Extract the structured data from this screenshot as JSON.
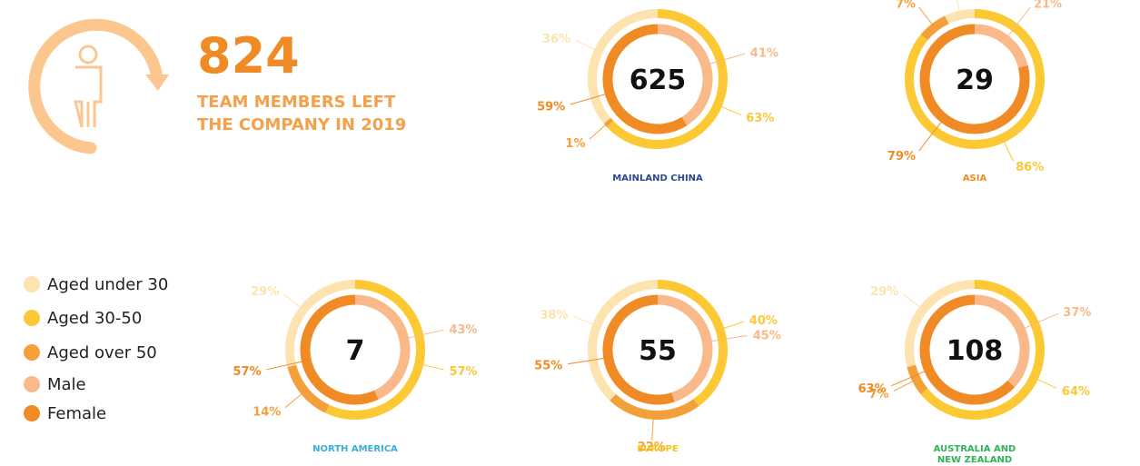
{
  "headline": {
    "value": "824",
    "lines": [
      "TEAM MEMBERS LEFT",
      "THE COMPANY IN 2019"
    ]
  },
  "legend": [
    {
      "name": "Aged under 30",
      "color": "#fde3b0"
    },
    {
      "name": "Aged 30-50",
      "color": "#fcc934"
    },
    {
      "name": "Aged over 50",
      "color": "#f4a03a"
    },
    {
      "name": "Male",
      "color": "#f9b98a"
    },
    {
      "name": "Female",
      "color": "#f08a24"
    }
  ],
  "chart_data": [
    {
      "type": "donut",
      "title": "MAINLAND CHINA",
      "title_color": "#2b4a8b",
      "total": 625,
      "age_values": [
        36,
        63,
        1
      ],
      "age_value_labels": [
        "36%",
        "63%",
        "1%"
      ],
      "gender_values": [
        41,
        59
      ],
      "gender_value_labels": [
        "41%",
        "59%"
      ]
    },
    {
      "type": "donut",
      "title": "ASIA",
      "title_color": "#f08a24",
      "total": 29,
      "age_values": [
        7,
        86,
        7
      ],
      "age_value_labels": [
        "7%",
        "86%",
        "7%"
      ],
      "gender_values": [
        21,
        79
      ],
      "gender_value_labels": [
        "21%",
        "79%"
      ]
    },
    {
      "type": "donut",
      "title": "NORTH AMERICA",
      "title_color": "#3aaed8",
      "total": 7,
      "age_values": [
        29,
        57,
        14
      ],
      "age_value_labels": [
        "29%",
        "57%",
        "14%"
      ],
      "gender_values": [
        43,
        57
      ],
      "gender_value_labels": [
        "43%",
        "57%"
      ]
    },
    {
      "type": "donut",
      "title": "EUROPE",
      "title_color": "#f5c518",
      "total": 55,
      "age_values": [
        38,
        40,
        22
      ],
      "age_value_labels": [
        "38%",
        "40%",
        "22%"
      ],
      "gender_values": [
        45,
        55
      ],
      "gender_value_labels": [
        "45%",
        "55%"
      ]
    },
    {
      "type": "donut",
      "title": "AUSTRALIA AND NEW ZEALAND",
      "title_color": "#2fb35a",
      "total": 108,
      "age_values": [
        29,
        64,
        7
      ],
      "age_value_labels": [
        "29%",
        "64%",
        "7%"
      ],
      "gender_values": [
        37,
        63
      ],
      "gender_value_labels": [
        "37%",
        "63%"
      ]
    }
  ]
}
